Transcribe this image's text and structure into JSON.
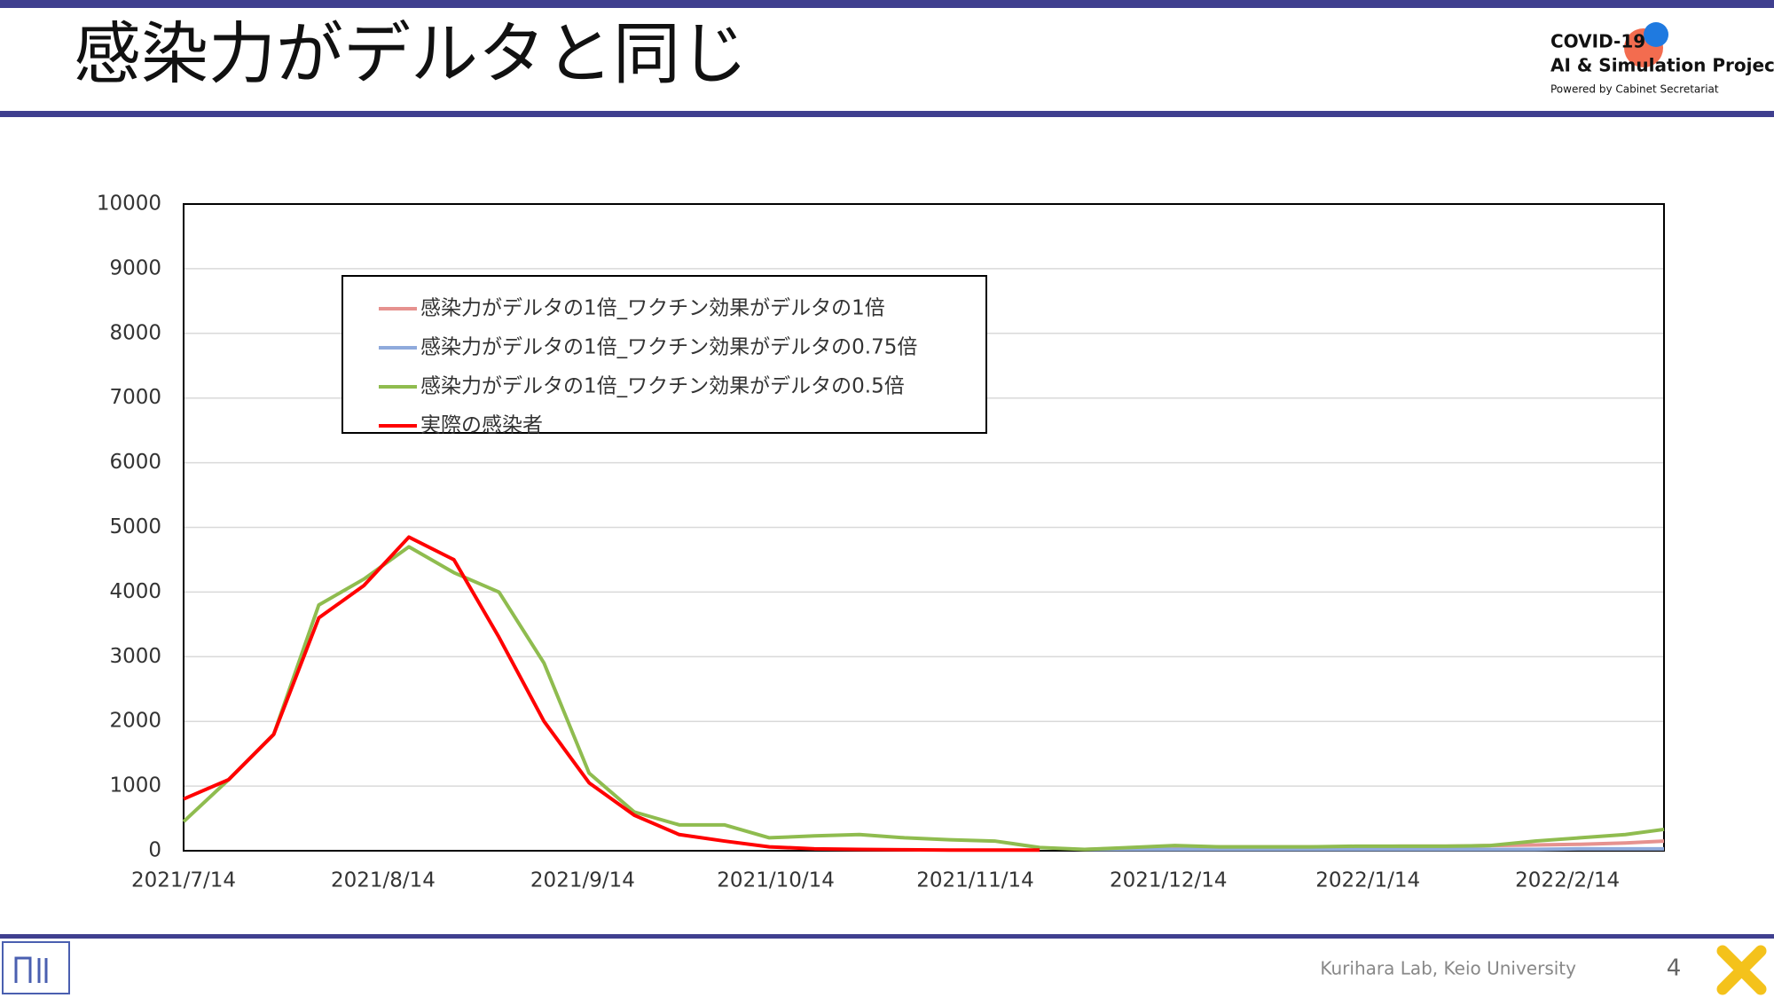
{
  "header": {
    "title": "感染力がデルタと同じ",
    "logo": [
      "COVID-19",
      "AI & Simulation Project",
      "Powered by Cabinet Secretariat"
    ]
  },
  "chart_data": {
    "type": "line",
    "x": [
      "2021/7/14",
      "2021/7/21",
      "2021/7/28",
      "2021/8/4",
      "2021/8/11",
      "2021/8/18",
      "2021/8/25",
      "2021/9/1",
      "2021/9/8",
      "2021/9/15",
      "2021/9/22",
      "2021/9/29",
      "2021/10/6",
      "2021/10/13",
      "2021/10/20",
      "2021/10/27",
      "2021/11/3",
      "2021/11/10",
      "2021/11/17",
      "2021/11/24",
      "2021/12/1",
      "2021/12/8",
      "2021/12/15",
      "2021/12/22",
      "2021/12/29",
      "2022/1/5",
      "2022/1/12",
      "2022/1/19",
      "2022/1/26",
      "2022/2/2",
      "2022/2/9",
      "2022/2/16",
      "2022/2/23",
      "2022/3/1"
    ],
    "series": [
      {
        "name": "感染力がデルタの1倍_ワクチン効果がデルタの1倍",
        "color": "#e6928f",
        "values": [
          null,
          null,
          null,
          null,
          null,
          null,
          null,
          null,
          null,
          null,
          null,
          null,
          null,
          null,
          null,
          null,
          null,
          null,
          null,
          null,
          20,
          40,
          60,
          60,
          60,
          60,
          60,
          70,
          70,
          80,
          90,
          100,
          120,
          150
        ]
      },
      {
        "name": "感染力がデルタの1倍_ワクチン効果がデルタの0.75倍",
        "color": "#8faadc",
        "values": [
          null,
          null,
          null,
          null,
          null,
          null,
          null,
          null,
          null,
          null,
          null,
          null,
          null,
          null,
          null,
          null,
          null,
          null,
          null,
          null,
          20,
          20,
          20,
          20,
          20,
          20,
          20,
          20,
          20,
          20,
          20,
          30,
          30,
          30
        ]
      },
      {
        "name": "感染力がデルタの1倍_ワクチン効果がデルタの0.5倍",
        "color": "#8fbc4f",
        "values": [
          450,
          1100,
          1800,
          3800,
          4200,
          4700,
          4300,
          4000,
          2900,
          1200,
          600,
          400,
          400,
          200,
          230,
          250,
          200,
          170,
          150,
          50,
          20,
          50,
          80,
          60,
          60,
          60,
          70,
          70,
          70,
          80,
          150,
          200,
          250,
          330
        ]
      },
      {
        "name": "実際の感染者",
        "color": "#ff0000",
        "values": [
          800,
          1100,
          1800,
          3600,
          4100,
          4850,
          4500,
          3300,
          2000,
          1050,
          550,
          250,
          150,
          60,
          30,
          20,
          15,
          10,
          10,
          10,
          null,
          null,
          null,
          null,
          null,
          null,
          null,
          null,
          null,
          null,
          null,
          null,
          null,
          null
        ]
      }
    ],
    "xlim": [
      "2021/7/14",
      "2022/3/1"
    ],
    "xticks": [
      "2021/7/14",
      "2021/8/14",
      "2021/9/14",
      "2021/10/14",
      "2021/11/14",
      "2021/12/14",
      "2022/1/14",
      "2022/2/14"
    ],
    "ylim": [
      0,
      10000
    ],
    "yticks": [
      0,
      1000,
      2000,
      3000,
      4000,
      5000,
      6000,
      7000,
      8000,
      9000,
      10000
    ],
    "grid": true
  },
  "footer": {
    "credit": "Kurihara Lab, Keio University",
    "page": "4"
  }
}
